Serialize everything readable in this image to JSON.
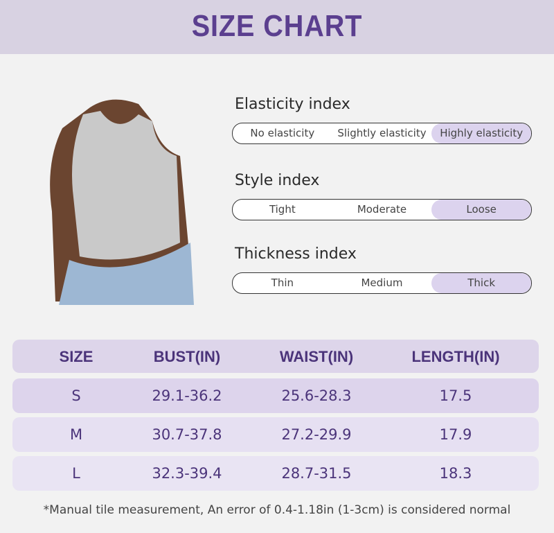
{
  "header": {
    "title": "SIZE CHART"
  },
  "indices": [
    {
      "label": "Elasticity index",
      "options": [
        "No elasticity",
        "Slightly elasticity",
        "Highly elasticity"
      ],
      "selected": 2
    },
    {
      "label": "Style index",
      "options": [
        "Tight",
        "Moderate",
        "Loose"
      ],
      "selected": 2
    },
    {
      "label": "Thickness index",
      "options": [
        "Thin",
        "Medium",
        "Thick"
      ],
      "selected": 2
    }
  ],
  "table": {
    "columns": [
      "SIZE",
      "BUST(IN)",
      "WAIST(IN)",
      "LENGTH(IN)"
    ],
    "rows": [
      [
        "S",
        "29.1-36.2",
        "25.6-28.3",
        "17.5"
      ],
      [
        "M",
        "30.7-37.8",
        "27.2-29.9",
        "17.9"
      ],
      [
        "L",
        "32.3-39.4",
        "28.7-31.5",
        "18.3"
      ]
    ]
  },
  "footnote": "*Manual tile measurement, An error of 0.4-1.18in (1-3cm) is considered normal"
}
